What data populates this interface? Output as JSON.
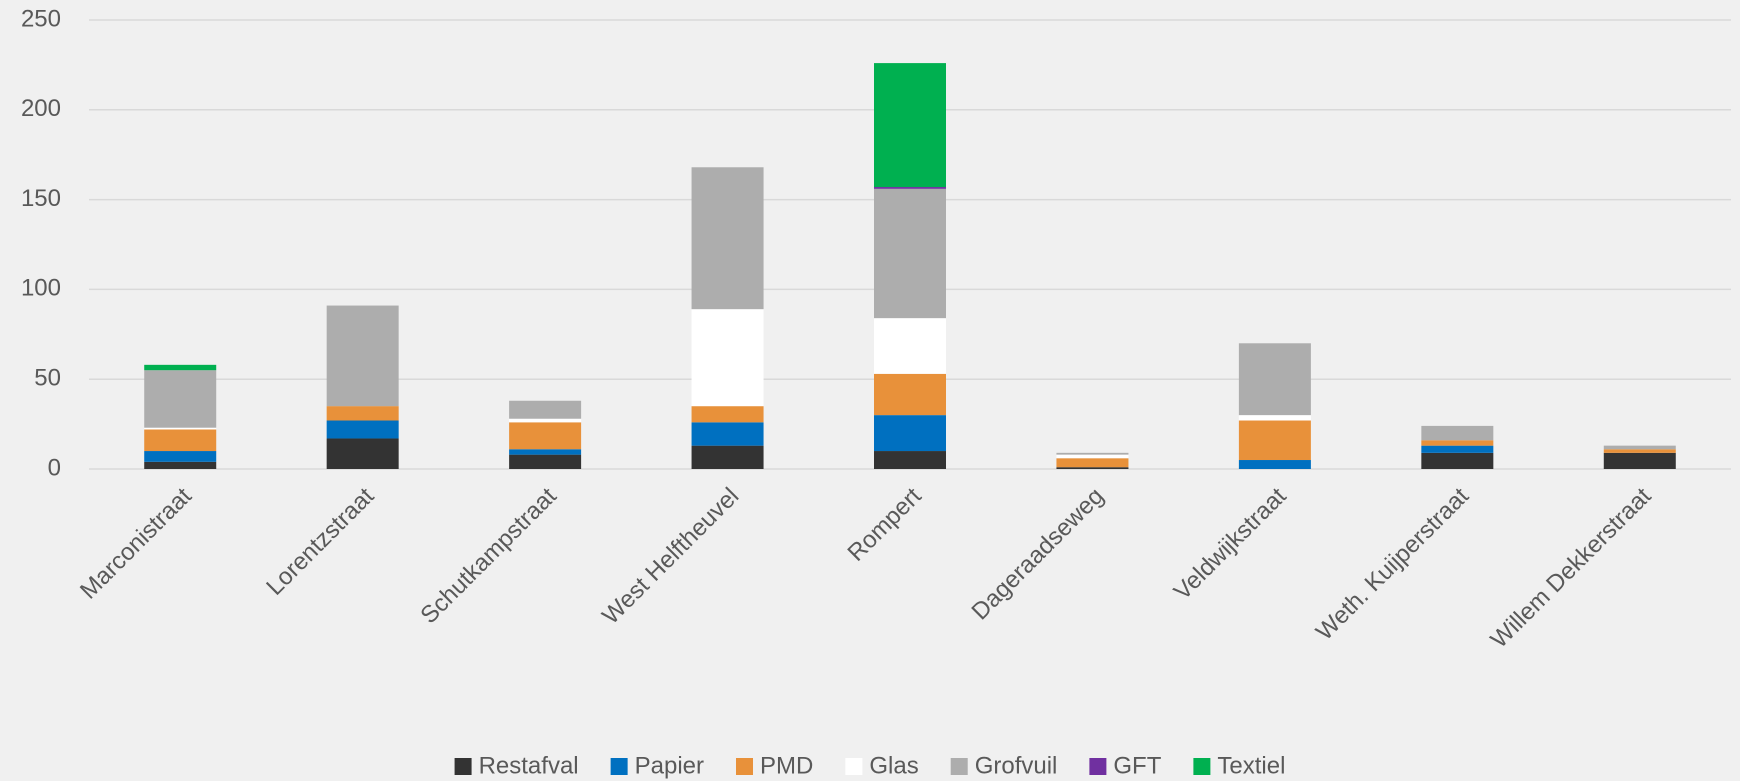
{
  "chart_data": {
    "type": "stacked_bar",
    "categories": [
      "Marconistraat",
      "Lorentzstraat",
      "Schutkampstraat",
      "West Helftheuvel",
      "Rompert",
      "Dageraadseweg",
      "Veldwijkstraat",
      "Weth. Kuijperstraat",
      "Willem Dekkerstraat"
    ],
    "series": [
      {
        "name": "Restafval",
        "color": "#333333",
        "values": [
          4,
          17,
          8,
          13,
          10,
          1,
          0,
          9,
          9
        ]
      },
      {
        "name": "Papier",
        "color": "#0070c0",
        "values": [
          6,
          10,
          3,
          13,
          20,
          0,
          5,
          4,
          0
        ]
      },
      {
        "name": "PMD",
        "color": "#e8913a",
        "values": [
          12,
          8,
          15,
          9,
          23,
          5,
          22,
          3,
          2
        ]
      },
      {
        "name": "Glas",
        "color": "#ffffff",
        "values": [
          1,
          0,
          2,
          54,
          31,
          2,
          3,
          0,
          0
        ]
      },
      {
        "name": "Grofvuil",
        "color": "#adadad",
        "values": [
          32,
          56,
          10,
          79,
          72,
          1,
          40,
          8,
          2
        ]
      },
      {
        "name": "GFT",
        "color": "#7030a0",
        "values": [
          0,
          0,
          0,
          0,
          1,
          0,
          0,
          0,
          0
        ]
      },
      {
        "name": "Textiel",
        "color": "#00b050",
        "values": [
          3,
          0,
          0,
          0,
          69,
          0,
          0,
          0,
          0
        ]
      }
    ],
    "ylim": [
      0,
      250
    ],
    "yticks": [
      0,
      50,
      100,
      150,
      200,
      250
    ],
    "grid": true,
    "legend": "bottom"
  }
}
